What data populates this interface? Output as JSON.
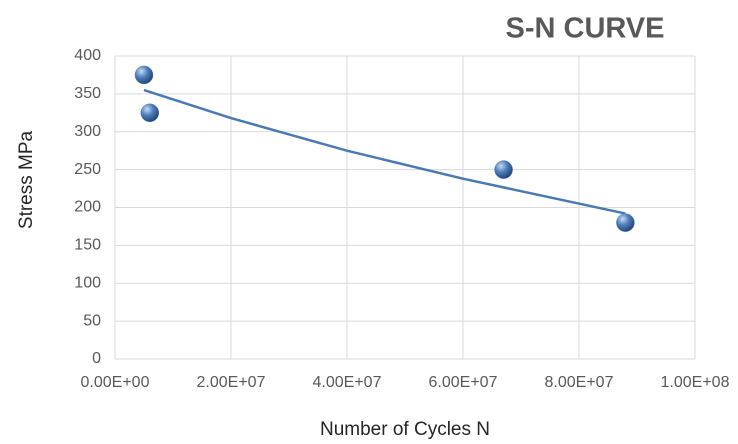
{
  "chart_data": {
    "type": "scatter",
    "title": "S-N CURVE",
    "x_label": "Number of Cycles N",
    "y_label": "Stress MPa",
    "series": [
      {
        "color": "#4f81bd",
        "x": [
          5000000,
          6000000,
          67000000,
          88000000
        ],
        "values": [
          375,
          325,
          250,
          180
        ]
      }
    ],
    "trendline": {
      "color": "#4a7ab5",
      "x": [
        5000000,
        20000000,
        40000000,
        60000000,
        88000000
      ],
      "values": [
        355,
        318,
        275,
        238,
        192
      ]
    },
    "xlim": [
      0,
      100000000
    ],
    "xticks": [
      {
        "value": 0,
        "label": "0.00E+00"
      },
      {
        "value": 20000000,
        "label": "2.00E+07"
      },
      {
        "value": 40000000,
        "label": "4.00E+07"
      },
      {
        "value": 60000000,
        "label": "6.00E+07"
      },
      {
        "value": 80000000,
        "label": "8.00E+07"
      },
      {
        "value": 100000000,
        "label": "1.00E+08"
      }
    ],
    "ylim": [
      0,
      400
    ],
    "yticks": [
      0,
      50,
      100,
      150,
      200,
      250,
      300,
      350,
      400
    ],
    "grid": true
  }
}
